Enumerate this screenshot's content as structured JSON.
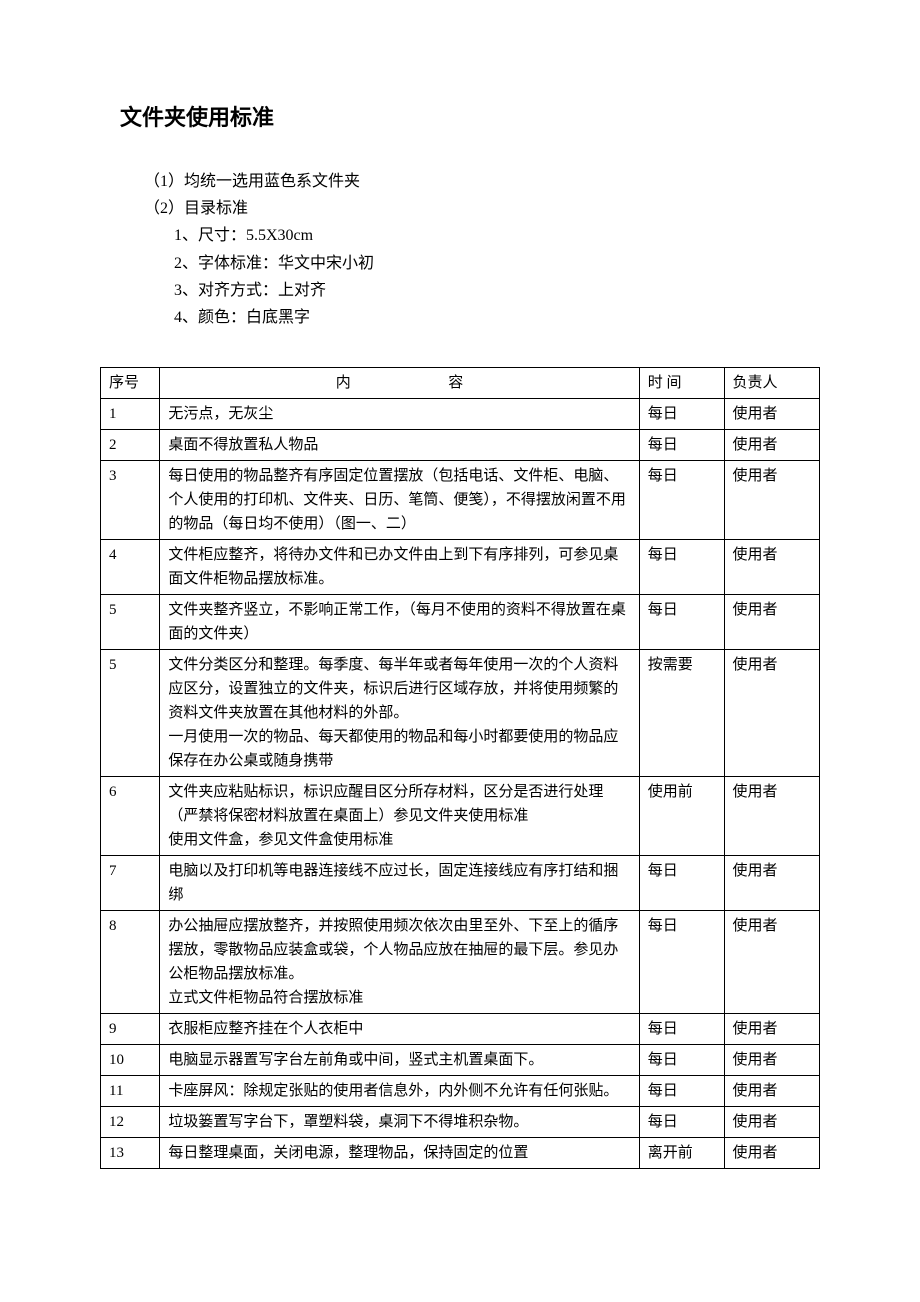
{
  "document": {
    "title": "文件夹使用标准",
    "intro": {
      "line1": "（1）均统一选用蓝色系文件夹",
      "line2": "（2）目录标准",
      "sub1": "1、尺寸：5.5X30cm",
      "sub2": "2、字体标准：华文中宋小初",
      "sub3": "3、对齐方式：上对齐",
      "sub4": "4、颜色：白底黑字"
    },
    "table": {
      "headers": {
        "index": "序号",
        "content_left": "内",
        "content_right": "容",
        "time": "时 间",
        "owner": "负责人"
      },
      "rows": [
        {
          "index": "1",
          "content": "无污点，无灰尘",
          "time": "每日",
          "owner": "使用者"
        },
        {
          "index": "2",
          "content": "桌面不得放置私人物品",
          "time": "每日",
          "owner": "使用者"
        },
        {
          "index": "3",
          "content": "每日使用的物品整齐有序固定位置摆放（包括电话、文件柜、电脑、个人使用的打印机、文件夹、日历、笔筒、便笺），不得摆放闲置不用的物品（每日均不使用）（图一、二）",
          "time": "每日",
          "owner": "使用者"
        },
        {
          "index": "4",
          "content": "文件柜应整齐，将待办文件和已办文件由上到下有序排列，可参见桌面文件柜物品摆放标准。",
          "time": "每日",
          "owner": "使用者"
        },
        {
          "index": "5",
          "content": "文件夹整齐竖立，不影响正常工作，（每月不使用的资料不得放置在桌面的文件夹）",
          "time": "每日",
          "owner": "使用者"
        },
        {
          "index": "5",
          "content": "文件分类区分和整理。每季度、每半年或者每年使用一次的个人资料应区分，设置独立的文件夹，标识后进行区域存放，并将使用频繁的资料文件夹放置在其他材料的外部。\n一月使用一次的物品、每天都使用的物品和每小时都要使用的物品应保存在办公桌或随身携带",
          "time": "按需要",
          "owner": "使用者"
        },
        {
          "index": "6",
          "content": "文件夹应粘贴标识，标识应醒目区分所存材料，区分是否进行处理（严禁将保密材料放置在桌面上）参见文件夹使用标准\n使用文件盒，参见文件盒使用标准",
          "time": "使用前",
          "owner": "使用者"
        },
        {
          "index": "7",
          "content": "电脑以及打印机等电器连接线不应过长，固定连接线应有序打结和捆绑",
          "time": "每日",
          "owner": "使用者"
        },
        {
          "index": "8",
          "content": "办公抽屉应摆放整齐，并按照使用频次依次由里至外、下至上的循序摆放，零散物品应装盒或袋，个人物品应放在抽屉的最下层。参见办公柜物品摆放标准。\n立式文件柜物品符合摆放标准",
          "time": "每日",
          "owner": "使用者"
        },
        {
          "index": "9",
          "content": "衣服柜应整齐挂在个人衣柜中",
          "time": "每日",
          "owner": "使用者"
        },
        {
          "index": "10",
          "content": "电脑显示器置写字台左前角或中间，竖式主机置桌面下。",
          "time": "每日",
          "owner": "使用者"
        },
        {
          "index": "11",
          "content": "卡座屏风：除规定张贴的使用者信息外，内外侧不允许有任何张贴。",
          "time": "每日",
          "owner": "使用者"
        },
        {
          "index": "12",
          "content": "垃圾篓置写字台下，罩塑料袋，桌洞下不得堆积杂物。",
          "time": "每日",
          "owner": "使用者"
        },
        {
          "index": "13",
          "content": "每日整理桌面，关闭电源，整理物品，保持固定的位置",
          "time": "离开前",
          "owner": "使用者"
        }
      ]
    },
    "styling": {
      "background_color": "#ffffff",
      "text_color": "#000000",
      "border_color": "#000000",
      "title_fontsize": 22,
      "body_fontsize": 16,
      "table_fontsize": 15,
      "col_widths": {
        "index": 56,
        "content": 452,
        "time": 80,
        "owner": 90
      }
    }
  }
}
